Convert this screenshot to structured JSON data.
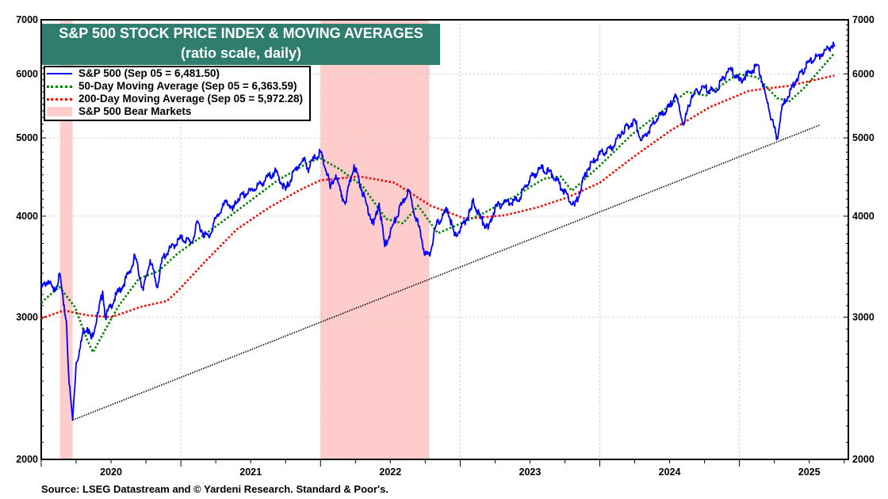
{
  "chart_data": {
    "type": "line",
    "title": "S&P 500 STOCK PRICE INDEX & MOVING AVERAGES",
    "subtitle": "(ratio scale, daily)",
    "y_scale": "log",
    "ylim": [
      2000,
      7000
    ],
    "y_ticks": [
      2000,
      3000,
      4000,
      5000,
      6000,
      7000
    ],
    "y_tick_labels": [
      "2000",
      "3000",
      "4000",
      "5000",
      "6000",
      "7000"
    ],
    "xlim": [
      2020.0,
      2025.78
    ],
    "x_tick_labels": [
      "2020",
      "2021",
      "2022",
      "2023",
      "2024",
      "2025"
    ],
    "x_year_starts": [
      2020,
      2021,
      2022,
      2023,
      2024,
      2025
    ],
    "grid": true,
    "legend_placement": "top-left",
    "legend": [
      "S&P 500 (Sep 05 = 6,481.50)",
      "50-Day Moving Average (Sep 05 = 6,363.59)",
      "200-Day Moving Average (Sep 05 = 5,972.28)",
      "S&P 500 Bear Markets"
    ],
    "colors": {
      "sp500": "#0000ff",
      "ma50": "#008000",
      "ma200": "#ff0000",
      "bear": "#ffcccc",
      "title_bg": "#2e7d6f",
      "trend": "#000000"
    },
    "bear_markets": [
      [
        2020.135,
        2020.225
      ],
      [
        2022.0,
        2022.78
      ]
    ],
    "trendline": [
      [
        2020.225,
        2237
      ],
      [
        2025.58,
        5190
      ]
    ],
    "series": [
      {
        "name": "S&P 500",
        "points": [
          [
            2020.0,
            3258
          ],
          [
            2020.05,
            3330
          ],
          [
            2020.09,
            3225
          ],
          [
            2020.135,
            3386
          ],
          [
            2020.16,
            3100
          ],
          [
            2020.18,
            2970
          ],
          [
            2020.2,
            2480
          ],
          [
            2020.225,
            2237
          ],
          [
            2020.25,
            2630
          ],
          [
            2020.28,
            2750
          ],
          [
            2020.3,
            2880
          ],
          [
            2020.33,
            2912
          ],
          [
            2020.36,
            2820
          ],
          [
            2020.41,
            3044
          ],
          [
            2020.44,
            3232
          ],
          [
            2020.46,
            3000
          ],
          [
            2020.5,
            3100
          ],
          [
            2020.54,
            3200
          ],
          [
            2020.58,
            3271
          ],
          [
            2020.66,
            3500
          ],
          [
            2020.67,
            3580
          ],
          [
            2020.73,
            3237
          ],
          [
            2020.78,
            3534
          ],
          [
            2020.83,
            3270
          ],
          [
            2020.87,
            3550
          ],
          [
            2020.91,
            3622
          ],
          [
            2021.0,
            3756
          ],
          [
            2021.08,
            3714
          ],
          [
            2021.12,
            3930
          ],
          [
            2021.16,
            3811
          ],
          [
            2021.2,
            3770
          ],
          [
            2021.25,
            3973
          ],
          [
            2021.33,
            4181
          ],
          [
            2021.37,
            4063
          ],
          [
            2021.41,
            4204
          ],
          [
            2021.5,
            4298
          ],
          [
            2021.58,
            4395
          ],
          [
            2021.66,
            4523
          ],
          [
            2021.68,
            4537
          ],
          [
            2021.75,
            4308
          ],
          [
            2021.83,
            4605
          ],
          [
            2021.89,
            4700
          ],
          [
            2021.91,
            4567
          ],
          [
            2021.95,
            4710
          ],
          [
            2022.0,
            4797
          ],
          [
            2022.05,
            4500
          ],
          [
            2022.07,
            4327
          ],
          [
            2022.11,
            4500
          ],
          [
            2022.15,
            4226
          ],
          [
            2022.18,
            4170
          ],
          [
            2022.24,
            4631
          ],
          [
            2022.33,
            4132
          ],
          [
            2022.38,
            3901
          ],
          [
            2022.42,
            4150
          ],
          [
            2022.46,
            3667
          ],
          [
            2022.5,
            3820
          ],
          [
            2022.58,
            4130
          ],
          [
            2022.63,
            4305
          ],
          [
            2022.7,
            3900
          ],
          [
            2022.75,
            3586
          ],
          [
            2022.78,
            3577
          ],
          [
            2022.83,
            3900
          ],
          [
            2022.91,
            4080
          ],
          [
            2022.96,
            3783
          ],
          [
            2023.0,
            3840
          ],
          [
            2023.08,
            4077
          ],
          [
            2023.09,
            4179
          ],
          [
            2023.15,
            3970
          ],
          [
            2023.2,
            3855
          ],
          [
            2023.25,
            4100
          ],
          [
            2023.33,
            4169
          ],
          [
            2023.41,
            4180
          ],
          [
            2023.5,
            4450
          ],
          [
            2023.58,
            4589
          ],
          [
            2023.66,
            4508
          ],
          [
            2023.75,
            4288
          ],
          [
            2023.82,
            4117
          ],
          [
            2023.91,
            4568
          ],
          [
            2024.0,
            4770
          ],
          [
            2024.08,
            4846
          ],
          [
            2024.16,
            5096
          ],
          [
            2024.25,
            5254
          ],
          [
            2024.3,
            4967
          ],
          [
            2024.41,
            5278
          ],
          [
            2024.5,
            5460
          ],
          [
            2024.54,
            5667
          ],
          [
            2024.6,
            5186
          ],
          [
            2024.66,
            5648
          ],
          [
            2024.75,
            5762
          ],
          [
            2024.83,
            5705
          ],
          [
            2024.91,
            6032
          ],
          [
            2024.93,
            6090
          ],
          [
            2025.0,
            5882
          ],
          [
            2025.08,
            6041
          ],
          [
            2025.135,
            6144
          ],
          [
            2025.2,
            5522
          ],
          [
            2025.27,
            4983
          ],
          [
            2025.3,
            5400
          ],
          [
            2025.33,
            5569
          ],
          [
            2025.41,
            5912
          ],
          [
            2025.5,
            6205
          ],
          [
            2025.58,
            6339
          ],
          [
            2025.66,
            6502
          ],
          [
            2025.68,
            6481.5
          ]
        ]
      },
      {
        "name": "50-Day Moving Average",
        "points": [
          [
            2020.0,
            3126
          ],
          [
            2020.13,
            3270
          ],
          [
            2020.24,
            3090
          ],
          [
            2020.33,
            2810
          ],
          [
            2020.37,
            2714
          ],
          [
            2020.47,
            2918
          ],
          [
            2020.55,
            3090
          ],
          [
            2020.7,
            3348
          ],
          [
            2020.84,
            3420
          ],
          [
            2020.98,
            3600
          ],
          [
            2021.18,
            3807
          ],
          [
            2021.4,
            4059
          ],
          [
            2021.68,
            4415
          ],
          [
            2021.92,
            4668
          ],
          [
            2022.0,
            4717
          ],
          [
            2022.14,
            4570
          ],
          [
            2022.3,
            4360
          ],
          [
            2022.47,
            3970
          ],
          [
            2022.59,
            3920
          ],
          [
            2022.7,
            4120
          ],
          [
            2022.84,
            3810
          ],
          [
            2022.98,
            3900
          ],
          [
            2023.15,
            4020
          ],
          [
            2023.38,
            4220
          ],
          [
            2023.6,
            4450
          ],
          [
            2023.72,
            4480
          ],
          [
            2023.8,
            4300
          ],
          [
            2024.0,
            4620
          ],
          [
            2024.23,
            5050
          ],
          [
            2024.45,
            5400
          ],
          [
            2024.62,
            5700
          ],
          [
            2024.76,
            5640
          ],
          [
            2024.99,
            6000
          ],
          [
            2025.13,
            5940
          ],
          [
            2025.27,
            5600
          ],
          [
            2025.36,
            5550
          ],
          [
            2025.47,
            5780
          ],
          [
            2025.68,
            6363.59
          ]
        ]
      },
      {
        "name": "200-Day Moving Average",
        "points": [
          [
            2020.0,
            2988
          ],
          [
            2020.16,
            3058
          ],
          [
            2020.33,
            3016
          ],
          [
            2020.5,
            3000
          ],
          [
            2020.72,
            3091
          ],
          [
            2020.9,
            3141
          ],
          [
            2020.98,
            3235
          ],
          [
            2021.17,
            3509
          ],
          [
            2021.4,
            3853
          ],
          [
            2021.63,
            4098
          ],
          [
            2021.85,
            4309
          ],
          [
            2022.0,
            4431
          ],
          [
            2022.28,
            4480
          ],
          [
            2022.53,
            4400
          ],
          [
            2022.79,
            4120
          ],
          [
            2023.04,
            3970
          ],
          [
            2023.32,
            4010
          ],
          [
            2023.55,
            4100
          ],
          [
            2023.77,
            4220
          ],
          [
            2024.0,
            4400
          ],
          [
            2024.23,
            4720
          ],
          [
            2024.51,
            5110
          ],
          [
            2024.79,
            5460
          ],
          [
            2025.07,
            5720
          ],
          [
            2025.36,
            5800
          ],
          [
            2025.68,
            5972.28
          ]
        ]
      }
    ],
    "source": "Source: LSEG Datastream and © Yardeni Research. Standard & Poor's."
  }
}
